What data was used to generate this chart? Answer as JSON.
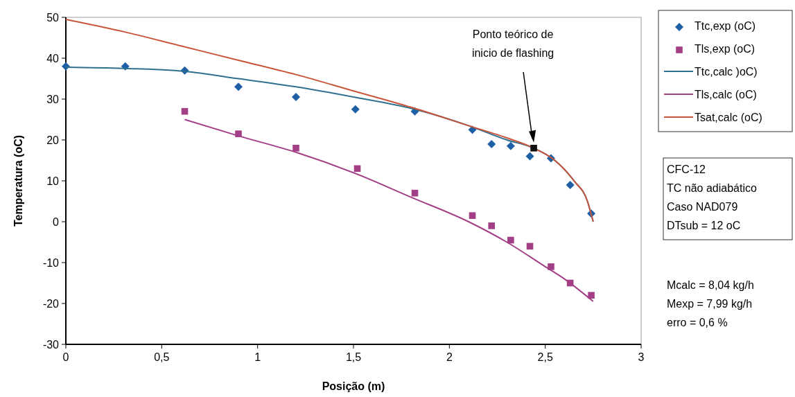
{
  "chart_data": {
    "type": "scatter",
    "xlabel": "Posição (m)",
    "ylabel": "Temperatura (oC)",
    "xlim": [
      0,
      3
    ],
    "xticks": [
      0,
      {
        "value": 0.5,
        "label": "0,5"
      },
      1,
      {
        "value": 1.5,
        "label": "1,5"
      },
      2,
      {
        "value": 2.5,
        "label": "2,5"
      },
      3
    ],
    "ylim": [
      -30,
      50
    ],
    "yticks": [
      -30,
      -20,
      -10,
      0,
      10,
      20,
      30,
      40,
      50
    ],
    "legend": "right",
    "grid": false,
    "series": [
      {
        "name": "Ttc,exp (oC)",
        "marker": "diamond",
        "color": "#1f5fa6",
        "x": [
          0,
          0.31,
          0.62,
          0.9,
          1.2,
          1.51,
          1.82,
          2.12,
          2.22,
          2.32,
          2.42,
          2.53,
          2.63,
          2.74
        ],
        "values": [
          38,
          38,
          37,
          33,
          30.5,
          27.5,
          27,
          22.5,
          19,
          18.5,
          16,
          15.5,
          9,
          2
        ]
      },
      {
        "name": "Tls,exp (oC)",
        "marker": "square",
        "color": "#a33f86",
        "x": [
          0.62,
          0.9,
          1.2,
          1.52,
          1.82,
          2.12,
          2.22,
          2.32,
          2.42,
          2.53,
          2.63,
          2.74
        ],
        "values": [
          27,
          21.5,
          18,
          13,
          7,
          1.5,
          -1,
          -4.5,
          -6,
          -11,
          -15,
          -18
        ]
      },
      {
        "name": "Ttc,calc )oC)",
        "type": "line",
        "color": "#2f6f8f",
        "x": [
          0,
          0.3,
          0.62,
          0.9,
          1.2,
          1.5,
          1.82,
          2.1,
          2.3,
          2.44,
          2.55,
          2.65,
          2.72,
          2.75
        ],
        "values": [
          37.8,
          37.5,
          36.8,
          35,
          33,
          30.5,
          27.5,
          23.5,
          20,
          18,
          15,
          10,
          5,
          0
        ]
      },
      {
        "name": "Tls,calc (oC)",
        "type": "line",
        "color": "#a33f86",
        "x": [
          0.62,
          0.9,
          1.2,
          1.5,
          1.8,
          2.1,
          2.3,
          2.5,
          2.6,
          2.75
        ],
        "values": [
          25,
          21,
          17,
          12,
          6,
          0,
          -5,
          -11,
          -14,
          -19.5
        ]
      },
      {
        "name": "Tsat,calc (oC)",
        "type": "line",
        "color": "#c8553a",
        "x": [
          0,
          0.3,
          0.6,
          0.9,
          1.2,
          1.5,
          1.8,
          2.1,
          2.3,
          2.44,
          2.55,
          2.65,
          2.72,
          2.75
        ],
        "values": [
          49.5,
          46.5,
          43,
          39.5,
          36,
          32,
          28,
          23.5,
          20.5,
          18,
          15,
          10,
          5,
          0
        ]
      },
      {
        "marker": "square",
        "color": "#111111",
        "x": [
          2.44
        ],
        "values": [
          18
        ]
      }
    ],
    "annotations": [
      "Ponto teórico de\ninicio de flashing",
      "CFC-12\nTC não adiabático\nCaso NAD079\nDTsub = 12 oC",
      "Mcalc = 8,04 kg/h\nMexp = 7,99 kg/h\nerro = 0,6 %"
    ]
  }
}
